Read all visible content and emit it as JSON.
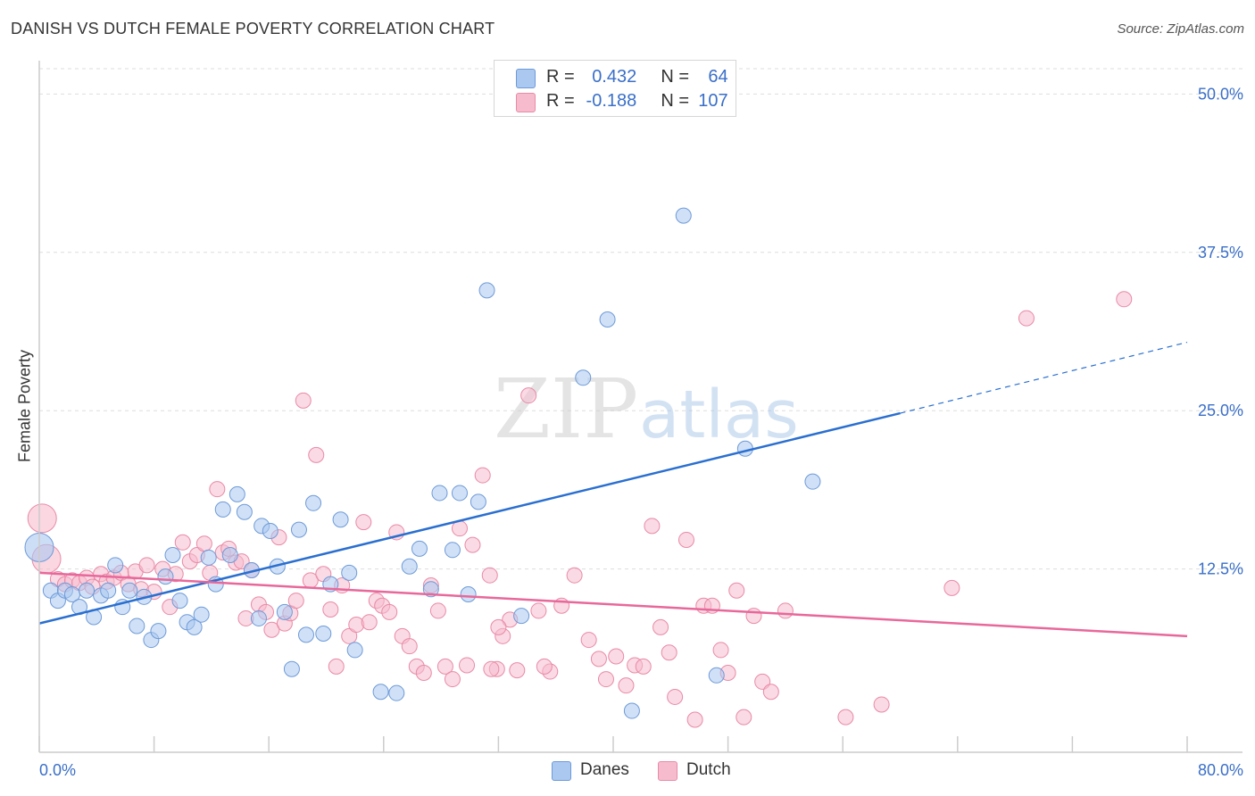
{
  "header": {
    "title": "DANISH VS DUTCH FEMALE POVERTY CORRELATION CHART",
    "source": "Source: ZipAtlas.com"
  },
  "watermark": {
    "zip": "ZIP",
    "atlas": "atlas"
  },
  "legend": {
    "danes": {
      "r_label": "R =",
      "r_value": "0.432",
      "n_label": "N =",
      "n_value": "64"
    },
    "dutch": {
      "r_label": "R =",
      "r_value": "-0.188",
      "n_label": "N =",
      "n_value": "107"
    }
  },
  "bottom_legend": {
    "danes": "Danes",
    "dutch": "Dutch"
  },
  "colors": {
    "danes_fill": "#aac8f0",
    "danes_stroke": "#6e9ad8",
    "danes_line": "#2a6fd0",
    "dutch_fill": "#f6bccd",
    "dutch_stroke": "#e98aa7",
    "dutch_line": "#e8689a",
    "tick_label": "#3a6fc8",
    "grid": "#dddddd",
    "axis": "#cccccc"
  },
  "chart_data": {
    "type": "scatter",
    "title": "DANISH VS DUTCH FEMALE POVERTY CORRELATION CHART",
    "xlabel": "",
    "ylabel": "Female Poverty",
    "xlim": [
      0,
      80
    ],
    "ylim": [
      0,
      52
    ],
    "x_tick_labels": [
      "0.0%",
      "80.0%"
    ],
    "y_ticks": [
      12.5,
      25.0,
      37.5,
      50.0
    ],
    "y_tick_labels": [
      "12.5%",
      "25.0%",
      "37.5%",
      "50.0%"
    ],
    "grid": true,
    "legend_position": "top-center",
    "series": [
      {
        "name": "Danes",
        "R": 0.432,
        "N": 64,
        "trend": {
          "x0": 0,
          "y0": 8.2,
          "x1": 60,
          "y1": 24.8,
          "dashed_to_x": 80,
          "dashed_to_y": 30.4
        },
        "points": [
          [
            0.0,
            14.2,
            "L"
          ],
          [
            0.8,
            10.8
          ],
          [
            1.3,
            10.0
          ],
          [
            1.8,
            10.8
          ],
          [
            2.3,
            10.5
          ],
          [
            2.8,
            9.5
          ],
          [
            3.3,
            10.8
          ],
          [
            3.8,
            8.7
          ],
          [
            4.3,
            10.4
          ],
          [
            4.8,
            10.8
          ],
          [
            5.3,
            12.8
          ],
          [
            5.8,
            9.5
          ],
          [
            6.3,
            10.8
          ],
          [
            6.8,
            8.0
          ],
          [
            7.3,
            10.3
          ],
          [
            7.8,
            6.9
          ],
          [
            8.3,
            7.6
          ],
          [
            8.8,
            11.9
          ],
          [
            9.3,
            13.6
          ],
          [
            9.8,
            10.0
          ],
          [
            10.3,
            8.3
          ],
          [
            10.8,
            7.9
          ],
          [
            11.3,
            8.9
          ],
          [
            11.8,
            13.4
          ],
          [
            12.3,
            11.3
          ],
          [
            12.8,
            17.2
          ],
          [
            13.3,
            13.6
          ],
          [
            13.8,
            18.4
          ],
          [
            14.3,
            17.0
          ],
          [
            14.8,
            12.4
          ],
          [
            15.3,
            8.6
          ],
          [
            15.5,
            15.9
          ],
          [
            16.1,
            15.5
          ],
          [
            16.6,
            12.7
          ],
          [
            17.1,
            9.1
          ],
          [
            17.6,
            4.6
          ],
          [
            18.1,
            15.6
          ],
          [
            18.6,
            7.3
          ],
          [
            19.1,
            17.7
          ],
          [
            19.8,
            7.4
          ],
          [
            20.3,
            11.3
          ],
          [
            21.0,
            16.4
          ],
          [
            21.6,
            12.2
          ],
          [
            22.0,
            6.1
          ],
          [
            23.8,
            2.8
          ],
          [
            24.9,
            2.7
          ],
          [
            25.8,
            12.7
          ],
          [
            26.5,
            14.1
          ],
          [
            27.3,
            10.9
          ],
          [
            27.9,
            18.5
          ],
          [
            28.8,
            14.0
          ],
          [
            29.3,
            18.5
          ],
          [
            29.9,
            10.5
          ],
          [
            30.6,
            17.8
          ],
          [
            31.2,
            34.5
          ],
          [
            33.6,
            8.8
          ],
          [
            35.8,
            49.9
          ],
          [
            37.9,
            27.6
          ],
          [
            39.6,
            32.2
          ],
          [
            41.3,
            1.3
          ],
          [
            44.9,
            40.4
          ],
          [
            47.2,
            4.1
          ],
          [
            49.2,
            22.0
          ],
          [
            53.9,
            19.4
          ]
        ]
      },
      {
        "name": "Dutch",
        "R": -0.188,
        "N": 107,
        "trend": {
          "x0": 0,
          "y0": 12.2,
          "x1": 80,
          "y1": 7.2
        },
        "points": [
          [
            0.2,
            16.5,
            "L"
          ],
          [
            0.5,
            13.3,
            "L"
          ],
          [
            1.3,
            11.7
          ],
          [
            1.8,
            11.3
          ],
          [
            2.3,
            11.6
          ],
          [
            2.8,
            11.4
          ],
          [
            3.3,
            11.8
          ],
          [
            3.7,
            11.1
          ],
          [
            4.3,
            12.1
          ],
          [
            4.7,
            11.5
          ],
          [
            5.2,
            11.8
          ],
          [
            5.7,
            12.2
          ],
          [
            6.2,
            11.3
          ],
          [
            6.7,
            12.3
          ],
          [
            7.1,
            10.9
          ],
          [
            7.5,
            12.8
          ],
          [
            8.0,
            10.7
          ],
          [
            8.6,
            12.5
          ],
          [
            9.1,
            9.5
          ],
          [
            9.5,
            12.1
          ],
          [
            10.0,
            14.6
          ],
          [
            10.5,
            13.1
          ],
          [
            11.0,
            13.6
          ],
          [
            11.5,
            14.5
          ],
          [
            11.9,
            12.2
          ],
          [
            12.4,
            18.8
          ],
          [
            12.8,
            13.8
          ],
          [
            13.2,
            14.1
          ],
          [
            13.7,
            13.0
          ],
          [
            14.1,
            13.1
          ],
          [
            14.4,
            8.6
          ],
          [
            14.8,
            12.4
          ],
          [
            15.3,
            9.7
          ],
          [
            15.8,
            9.1
          ],
          [
            16.2,
            7.7
          ],
          [
            16.7,
            15.0
          ],
          [
            17.1,
            8.2
          ],
          [
            17.5,
            9.0
          ],
          [
            17.9,
            10.0
          ],
          [
            18.4,
            25.8
          ],
          [
            18.9,
            11.6
          ],
          [
            19.3,
            21.5
          ],
          [
            19.8,
            12.1
          ],
          [
            20.3,
            9.3
          ],
          [
            20.7,
            4.8
          ],
          [
            21.1,
            11.2
          ],
          [
            21.6,
            7.2
          ],
          [
            22.1,
            8.1
          ],
          [
            22.6,
            16.2
          ],
          [
            23.0,
            8.3
          ],
          [
            23.5,
            10.0
          ],
          [
            23.9,
            9.6
          ],
          [
            24.4,
            9.1
          ],
          [
            24.9,
            15.4
          ],
          [
            25.3,
            7.2
          ],
          [
            25.8,
            6.4
          ],
          [
            26.3,
            4.8
          ],
          [
            26.8,
            4.3
          ],
          [
            27.3,
            11.2
          ],
          [
            27.8,
            9.2
          ],
          [
            28.3,
            4.8
          ],
          [
            28.8,
            3.8
          ],
          [
            29.3,
            15.7
          ],
          [
            29.8,
            4.9
          ],
          [
            30.2,
            14.4
          ],
          [
            30.9,
            19.9
          ],
          [
            31.4,
            12.0
          ],
          [
            31.9,
            4.6
          ],
          [
            32.3,
            7.2
          ],
          [
            32.8,
            8.5
          ],
          [
            33.3,
            4.5
          ],
          [
            34.1,
            26.2
          ],
          [
            34.8,
            9.2
          ],
          [
            35.6,
            4.4
          ],
          [
            36.4,
            9.6
          ],
          [
            37.3,
            12.0
          ],
          [
            38.3,
            6.9
          ],
          [
            39.0,
            5.4
          ],
          [
            39.5,
            3.8
          ],
          [
            40.2,
            5.6
          ],
          [
            40.9,
            3.3
          ],
          [
            41.5,
            4.9
          ],
          [
            42.1,
            4.8
          ],
          [
            42.7,
            15.9
          ],
          [
            43.3,
            7.9
          ],
          [
            43.9,
            5.9
          ],
          [
            44.3,
            2.4
          ],
          [
            45.1,
            14.8
          ],
          [
            45.7,
            0.6
          ],
          [
            46.3,
            9.6
          ],
          [
            46.9,
            9.6
          ],
          [
            47.5,
            6.1
          ],
          [
            48.0,
            4.3
          ],
          [
            48.6,
            10.8
          ],
          [
            49.1,
            0.8
          ],
          [
            49.8,
            8.8
          ],
          [
            50.4,
            3.6
          ],
          [
            51.0,
            2.8
          ],
          [
            52.0,
            9.2
          ],
          [
            56.2,
            0.8
          ],
          [
            58.7,
            1.8
          ],
          [
            63.6,
            11.0
          ],
          [
            68.8,
            32.3
          ],
          [
            75.6,
            33.8
          ],
          [
            31.5,
            4.6
          ],
          [
            32.0,
            7.9
          ],
          [
            35.2,
            4.8
          ]
        ]
      }
    ]
  }
}
